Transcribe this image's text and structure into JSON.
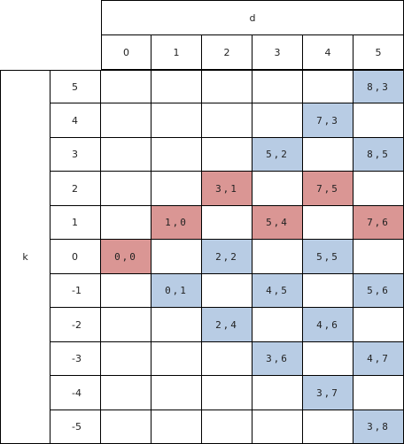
{
  "table": {
    "column_header_label": "d",
    "row_header_label": "k",
    "d_values": [
      "0",
      "1",
      "2",
      "3",
      "4",
      "5"
    ],
    "k_values": [
      "5",
      "4",
      "3",
      "2",
      "1",
      "0",
      "-1",
      "-2",
      "-3",
      "-4",
      "-5"
    ],
    "cells": [
      {
        "k": "0",
        "d": "0",
        "text": "0,0",
        "color": "#DA9694"
      },
      {
        "k": "1",
        "d": "1",
        "text": "1,0",
        "color": "#DA9694"
      },
      {
        "k": "-1",
        "d": "1",
        "text": "0,1",
        "color": "#B8CCE4"
      },
      {
        "k": "2",
        "d": "2",
        "text": "3,1",
        "color": "#DA9694"
      },
      {
        "k": "0",
        "d": "2",
        "text": "2,2",
        "color": "#B8CCE4"
      },
      {
        "k": "-2",
        "d": "2",
        "text": "2,4",
        "color": "#B8CCE4"
      },
      {
        "k": "3",
        "d": "3",
        "text": "5,2",
        "color": "#B8CCE4"
      },
      {
        "k": "1",
        "d": "3",
        "text": "5,4",
        "color": "#DA9694"
      },
      {
        "k": "-1",
        "d": "3",
        "text": "4,5",
        "color": "#B8CCE4"
      },
      {
        "k": "-3",
        "d": "3",
        "text": "3,6",
        "color": "#B8CCE4"
      },
      {
        "k": "4",
        "d": "4",
        "text": "7,3",
        "color": "#B8CCE4"
      },
      {
        "k": "2",
        "d": "4",
        "text": "7,5",
        "color": "#DA9694"
      },
      {
        "k": "0",
        "d": "4",
        "text": "5,5",
        "color": "#B8CCE4"
      },
      {
        "k": "-2",
        "d": "4",
        "text": "4,6",
        "color": "#B8CCE4"
      },
      {
        "k": "-4",
        "d": "4",
        "text": "3,7",
        "color": "#B8CCE4"
      },
      {
        "k": "5",
        "d": "5",
        "text": "8,3",
        "color": "#B8CCE4"
      },
      {
        "k": "3",
        "d": "5",
        "text": "8,5",
        "color": "#B8CCE4"
      },
      {
        "k": "1",
        "d": "5",
        "text": "7,6",
        "color": "#DA9694"
      },
      {
        "k": "-1",
        "d": "5",
        "text": "5,6",
        "color": "#B8CCE4"
      },
      {
        "k": "-3",
        "d": "5",
        "text": "4,7",
        "color": "#B8CCE4"
      },
      {
        "k": "-5",
        "d": "5",
        "text": "3,8",
        "color": "#B8CCE4"
      }
    ]
  },
  "colors": {
    "red_fill": "#DA9694",
    "blue_fill": "#B8CCE4",
    "gridline": "#000000"
  }
}
